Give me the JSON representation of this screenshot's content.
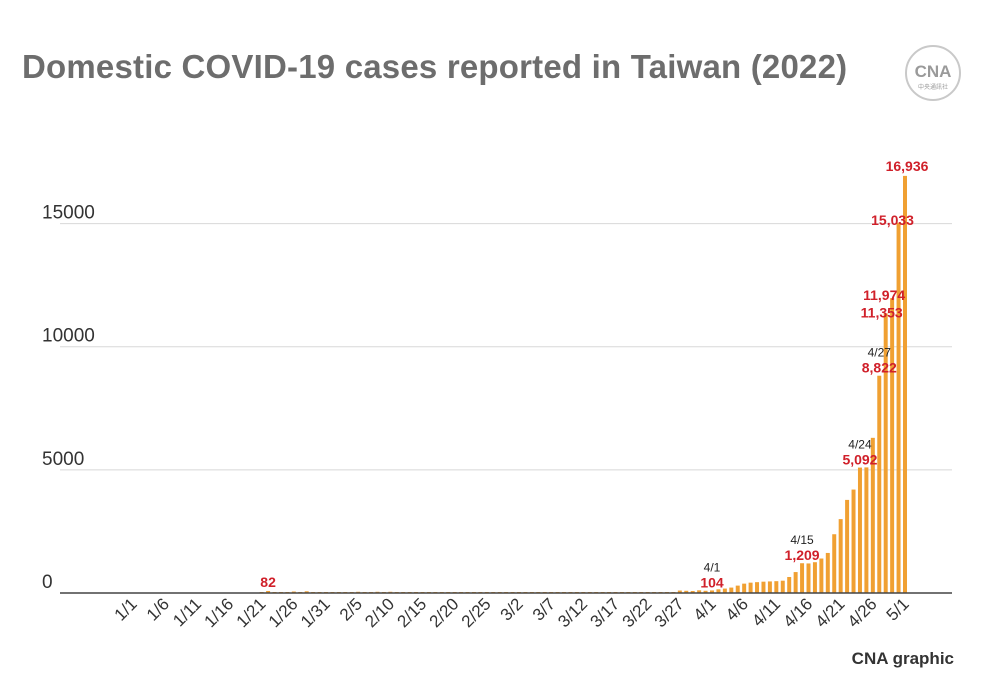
{
  "title": "Domestic COVID-19 cases reported in Taiwan (2022)",
  "logo": {
    "text": "CNA",
    "subtext": "中央通訊社"
  },
  "credit": "CNA graphic",
  "colors": {
    "bar": "#f0a032",
    "highlight_label": "#d0202a",
    "annotation": "#222222",
    "axis_text": "#333333",
    "grid": "#d8d8d8",
    "title": "#6d6d6d"
  },
  "chart_data": {
    "type": "bar",
    "title": "Domestic COVID-19 cases reported in Taiwan (2022)",
    "xlabel": "",
    "ylabel": "",
    "ylim": [
      0,
      17500
    ],
    "yticks": [
      0,
      5000,
      10000,
      15000
    ],
    "grid": true,
    "x_start": "1/1",
    "x_tick_labels": [
      "1/1",
      "1/6",
      "1/11",
      "1/16",
      "1/21",
      "1/26",
      "1/31",
      "2/5",
      "2/10",
      "2/15",
      "2/20",
      "2/25",
      "3/2",
      "3/7",
      "3/12",
      "3/17",
      "3/22",
      "3/27",
      "4/1",
      "4/6",
      "4/11",
      "4/16",
      "4/21",
      "4/26",
      "5/1"
    ],
    "values": [
      0,
      0,
      0,
      0,
      0,
      0,
      0,
      0,
      0,
      0,
      0,
      0,
      0,
      0,
      0,
      0,
      0,
      0,
      0,
      0,
      10,
      82,
      30,
      15,
      10,
      60,
      25,
      70,
      15,
      10,
      5,
      5,
      5,
      5,
      10,
      50,
      20,
      10,
      50,
      10,
      50,
      10,
      5,
      5,
      5,
      5,
      5,
      5,
      5,
      5,
      5,
      5,
      5,
      5,
      5,
      5,
      5,
      5,
      5,
      5,
      5,
      5,
      5,
      5,
      5,
      5,
      5,
      5,
      5,
      5,
      5,
      5,
      5,
      5,
      5,
      5,
      5,
      5,
      5,
      5,
      5,
      5,
      5,
      5,
      5,
      100,
      90,
      80,
      110,
      90,
      104,
      150,
      180,
      220,
      300,
      380,
      420,
      440,
      460,
      470,
      480,
      500,
      650,
      850,
      1209,
      1200,
      1250,
      1400,
      1626,
      2386,
      3000,
      3780,
      4200,
      5092,
      5100,
      6300,
      8822,
      11353,
      11974,
      15033,
      16936
    ],
    "data_labels": [
      {
        "date": "1/22",
        "text": "82",
        "style": "highlight"
      },
      {
        "date": "4/1",
        "text": "4/1",
        "style": "annotation"
      },
      {
        "date": "4/1",
        "text": "104",
        "style": "highlight"
      },
      {
        "date": "4/15",
        "text": "4/15",
        "style": "annotation"
      },
      {
        "date": "4/15",
        "text": "1,209",
        "style": "highlight"
      },
      {
        "date": "4/24",
        "text": "4/24",
        "style": "annotation"
      },
      {
        "date": "4/24",
        "text": "5,092",
        "style": "highlight"
      },
      {
        "date": "4/27",
        "text": "4/27",
        "style": "annotation"
      },
      {
        "date": "4/27",
        "text": "8,822",
        "style": "highlight"
      },
      {
        "date": "4/28",
        "text": "11,353",
        "style": "highlight"
      },
      {
        "date": "4/29",
        "text": "11,974",
        "style": "highlight"
      },
      {
        "date": "4/30",
        "text": "15,033",
        "style": "highlight"
      },
      {
        "date": "5/1",
        "text": "16,936",
        "style": "highlight"
      }
    ]
  }
}
